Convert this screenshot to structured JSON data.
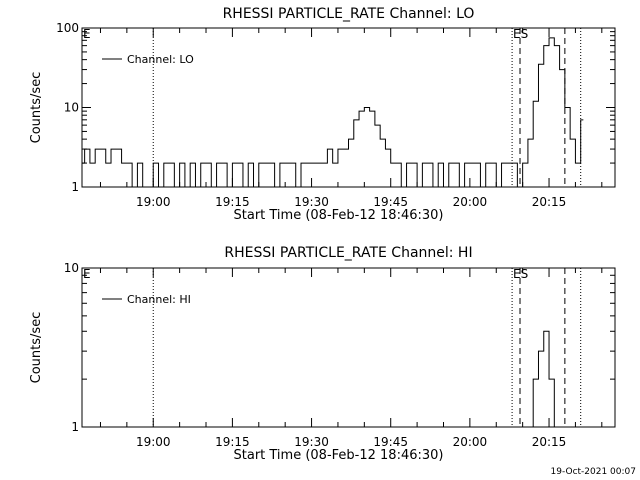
{
  "footer": {
    "timestamp": "19-Oct-2021 00:07"
  },
  "chart_data": [
    {
      "type": "line",
      "title": "RHESSI PARTICLE_RATE Channel: LO",
      "xlabel": "Start Time (08-Feb-12 18:46:30)",
      "ylabel": "Counts/sec",
      "yscale": "log",
      "ylim": [
        1,
        100
      ],
      "yticks": [
        "1",
        "10",
        "100"
      ],
      "xlim": [
        "18:46:30",
        "20:27:30"
      ],
      "xticks": [
        "19:00",
        "19:15",
        "19:30",
        "19:45",
        "20:00",
        "20:15"
      ],
      "legend": {
        "label": "Channel: LO",
        "position": "top-left"
      },
      "markers": [
        {
          "label": "E",
          "x": "18:46:30",
          "style": "none"
        },
        {
          "label": "",
          "x": "19:00:00",
          "style": "dotted"
        },
        {
          "label": "",
          "x": "20:08:00",
          "style": "dotted"
        },
        {
          "label": "ES",
          "x": "20:09:30",
          "style": "dashed"
        },
        {
          "label": "",
          "x": "20:18:00",
          "style": "dashed"
        },
        {
          "label": "",
          "x": "20:21:00",
          "style": "dotted"
        }
      ],
      "series": [
        {
          "name": "Channel: LO",
          "points": [
            [
              "18:46:30",
              2
            ],
            [
              "18:47:30",
              3
            ],
            [
              "18:48:30",
              2
            ],
            [
              "18:49:30",
              3
            ],
            [
              "18:50:30",
              3
            ],
            [
              "18:51:30",
              2
            ],
            [
              "18:52:30",
              3
            ],
            [
              "18:53:30",
              3
            ],
            [
              "18:54:30",
              2
            ],
            [
              "18:55:30",
              2
            ],
            [
              "18:56:30",
              1
            ],
            [
              "18:57:30",
              2
            ],
            [
              "18:58:30",
              1
            ],
            [
              "18:59:30",
              1
            ],
            [
              "19:00:30",
              2
            ],
            [
              "19:01:30",
              1
            ],
            [
              "19:02:30",
              2
            ],
            [
              "19:03:30",
              2
            ],
            [
              "19:04:30",
              1
            ],
            [
              "19:05:30",
              2
            ],
            [
              "19:06:30",
              1
            ],
            [
              "19:07:30",
              2
            ],
            [
              "19:08:30",
              1
            ],
            [
              "19:09:30",
              2
            ],
            [
              "19:10:30",
              2
            ],
            [
              "19:11:30",
              1
            ],
            [
              "19:12:30",
              2
            ],
            [
              "19:13:30",
              2
            ],
            [
              "19:14:30",
              1
            ],
            [
              "19:15:30",
              2
            ],
            [
              "19:16:30",
              2
            ],
            [
              "19:17:30",
              1
            ],
            [
              "19:18:30",
              2
            ],
            [
              "19:19:30",
              1
            ],
            [
              "19:20:30",
              2
            ],
            [
              "19:21:30",
              2
            ],
            [
              "19:22:30",
              2
            ],
            [
              "19:23:30",
              1
            ],
            [
              "19:24:30",
              2
            ],
            [
              "19:25:30",
              2
            ],
            [
              "19:26:30",
              2
            ],
            [
              "19:27:30",
              1
            ],
            [
              "19:28:30",
              2
            ],
            [
              "19:29:30",
              2
            ],
            [
              "19:30:30",
              2
            ],
            [
              "19:31:30",
              2
            ],
            [
              "19:32:30",
              2
            ],
            [
              "19:33:30",
              3
            ],
            [
              "19:34:30",
              2
            ],
            [
              "19:35:30",
              3
            ],
            [
              "19:36:30",
              3
            ],
            [
              "19:37:30",
              4
            ],
            [
              "19:38:30",
              7
            ],
            [
              "19:39:30",
              9
            ],
            [
              "19:40:30",
              10
            ],
            [
              "19:41:30",
              9
            ],
            [
              "19:42:30",
              6
            ],
            [
              "19:43:30",
              4
            ],
            [
              "19:44:30",
              3
            ],
            [
              "19:45:30",
              2
            ],
            [
              "19:46:30",
              2
            ],
            [
              "19:47:30",
              1
            ],
            [
              "19:48:30",
              2
            ],
            [
              "19:49:30",
              2
            ],
            [
              "19:50:30",
              1
            ],
            [
              "19:51:30",
              2
            ],
            [
              "19:52:30",
              2
            ],
            [
              "19:53:30",
              1
            ],
            [
              "19:54:30",
              2
            ],
            [
              "19:55:30",
              1
            ],
            [
              "19:56:30",
              2
            ],
            [
              "19:57:30",
              2
            ],
            [
              "19:58:30",
              1
            ],
            [
              "19:59:30",
              2
            ],
            [
              "20:00:30",
              2
            ],
            [
              "20:01:30",
              2
            ],
            [
              "20:02:30",
              1
            ],
            [
              "20:03:30",
              2
            ],
            [
              "20:04:30",
              2
            ],
            [
              "20:05:30",
              1
            ],
            [
              "20:06:30",
              2
            ],
            [
              "20:07:30",
              2
            ],
            [
              "20:08:30",
              2
            ],
            [
              "20:09:30",
              1
            ],
            [
              "20:10:30",
              2
            ],
            [
              "20:11:30",
              4
            ],
            [
              "20:12:30",
              12
            ],
            [
              "20:13:30",
              35
            ],
            [
              "20:14:30",
              60
            ],
            [
              "20:15:30",
              75
            ],
            [
              "20:16:30",
              60
            ],
            [
              "20:17:30",
              30
            ],
            [
              "20:18:30",
              10
            ],
            [
              "20:19:30",
              4
            ],
            [
              "20:20:30",
              2
            ],
            [
              "20:21:30",
              7
            ]
          ]
        }
      ]
    },
    {
      "type": "line",
      "title": "RHESSI PARTICLE_RATE Channel: HI",
      "xlabel": "Start Time (08-Feb-12 18:46:30)",
      "ylabel": "Counts/sec",
      "yscale": "log",
      "ylim": [
        1,
        10
      ],
      "yticks": [
        "1",
        "10"
      ],
      "xlim": [
        "18:46:30",
        "20:27:30"
      ],
      "xticks": [
        "19:00",
        "19:15",
        "19:30",
        "19:45",
        "20:00",
        "20:15"
      ],
      "legend": {
        "label": "Channel: HI",
        "position": "top-left"
      },
      "markers": [
        {
          "label": "E",
          "x": "18:46:30",
          "style": "none"
        },
        {
          "label": "",
          "x": "19:00:00",
          "style": "dotted"
        },
        {
          "label": "",
          "x": "20:08:00",
          "style": "dotted"
        },
        {
          "label": "ES",
          "x": "20:09:30",
          "style": "dashed"
        },
        {
          "label": "",
          "x": "20:18:00",
          "style": "dashed"
        },
        {
          "label": "",
          "x": "20:21:00",
          "style": "dotted"
        }
      ],
      "series": [
        {
          "name": "Channel: HI",
          "points": [
            [
              "20:11:30",
              1
            ],
            [
              "20:12:30",
              2
            ],
            [
              "20:13:30",
              3
            ],
            [
              "20:14:30",
              4
            ],
            [
              "20:15:30",
              2
            ],
            [
              "20:16:30",
              1
            ]
          ]
        }
      ]
    }
  ]
}
